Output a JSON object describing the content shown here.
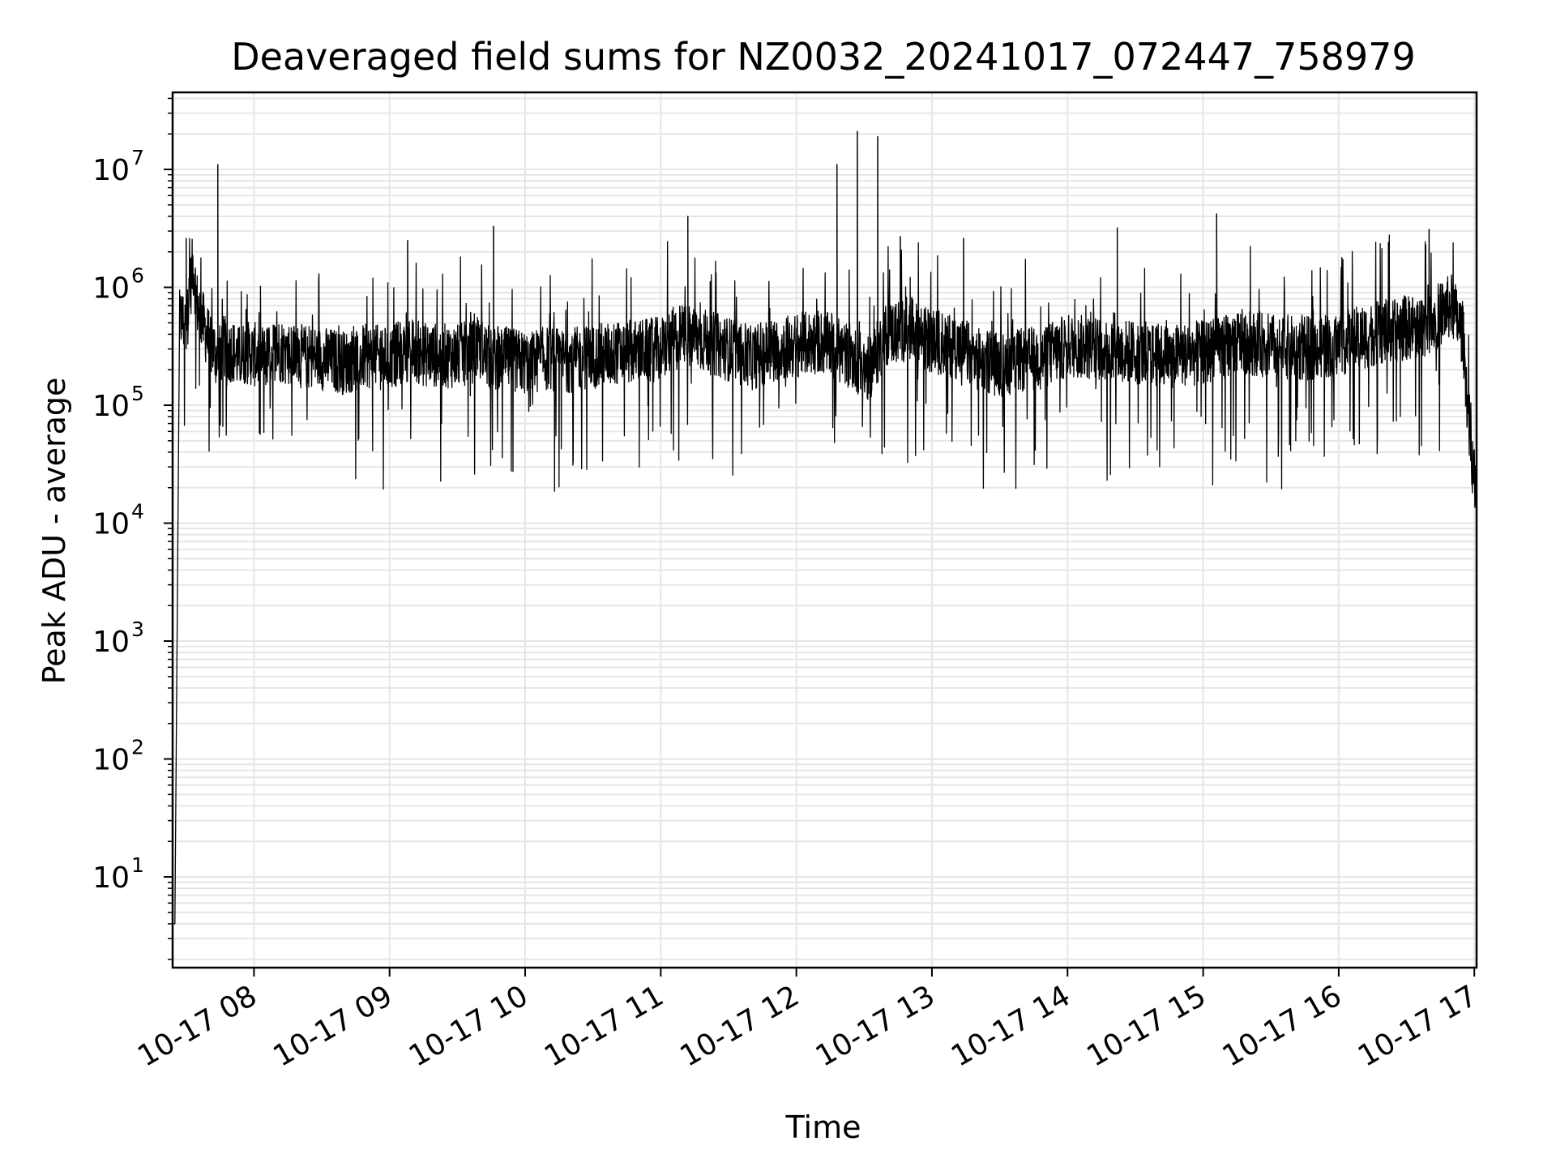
{
  "chart_data": {
    "type": "line",
    "title": "Deaveraged field sums for NZ0032_20241017_072447_758979",
    "xlabel": "Time",
    "ylabel": "Peak ADU - average",
    "y_scale": "log",
    "ylim": [
      1.7,
      45000000
    ],
    "xlim": [
      "2024-10-17 07:24",
      "2024-10-17 17:01"
    ],
    "grid": true,
    "line_color": "#000000",
    "grid_color": "#e6e6e6",
    "x_ticks": [
      {
        "value": "2024-10-17 08:00",
        "label": "10-17 08"
      },
      {
        "value": "2024-10-17 09:00",
        "label": "10-17 09"
      },
      {
        "value": "2024-10-17 10:00",
        "label": "10-17 10"
      },
      {
        "value": "2024-10-17 11:00",
        "label": "10-17 11"
      },
      {
        "value": "2024-10-17 12:00",
        "label": "10-17 12"
      },
      {
        "value": "2024-10-17 13:00",
        "label": "10-17 13"
      },
      {
        "value": "2024-10-17 14:00",
        "label": "10-17 14"
      },
      {
        "value": "2024-10-17 15:00",
        "label": "10-17 15"
      },
      {
        "value": "2024-10-17 16:00",
        "label": "10-17 16"
      },
      {
        "value": "2024-10-17 17:00",
        "label": "10-17 17"
      }
    ],
    "y_ticks": [
      {
        "value": 10,
        "base": "10",
        "exp": "1"
      },
      {
        "value": 100,
        "base": "10",
        "exp": "2"
      },
      {
        "value": 1000,
        "base": "10",
        "exp": "3"
      },
      {
        "value": 10000,
        "base": "10",
        "exp": "4"
      },
      {
        "value": 100000,
        "base": "10",
        "exp": "5"
      },
      {
        "value": 1000000,
        "base": "10",
        "exp": "6"
      },
      {
        "value": 10000000,
        "base": "10",
        "exp": "7"
      }
    ],
    "series": [
      {
        "x": [
          "2024-10-17 07:24",
          "2024-10-17 07:25",
          "2024-10-17 07:27",
          "2024-10-17 07:28",
          "2024-10-17 07:30",
          "2024-10-17 07:33",
          "2024-10-17 07:35",
          "2024-10-17 07:39",
          "2024-10-17 07:42",
          "2024-10-17 07:44",
          "2024-10-17 07:45",
          "2024-10-17 07:47",
          "2024-10-17 07:48",
          "2024-10-17 07:50",
          "2024-10-17 07:53",
          "2024-10-17 07:56",
          "2024-10-17 08:00",
          "2024-10-17 08:05",
          "2024-10-17 08:10",
          "2024-10-17 08:15",
          "2024-10-17 08:20",
          "2024-10-17 08:30",
          "2024-10-17 08:40",
          "2024-10-17 08:50",
          "2024-10-17 09:00",
          "2024-10-17 09:08",
          "2024-10-17 09:15",
          "2024-10-17 09:30",
          "2024-10-17 09:40",
          "2024-10-17 09:45",
          "2024-10-17 09:50",
          "2024-10-17 10:00",
          "2024-10-17 10:10",
          "2024-10-17 10:20",
          "2024-10-17 10:30",
          "2024-10-17 10:45",
          "2024-10-17 11:00",
          "2024-10-17 11:10",
          "2024-10-17 11:20",
          "2024-10-17 11:30",
          "2024-10-17 11:40",
          "2024-10-17 11:50",
          "2024-10-17 12:00",
          "2024-10-17 12:10",
          "2024-10-17 12:18",
          "2024-10-17 12:25",
          "2024-10-17 12:32",
          "2024-10-17 12:40",
          "2024-10-17 12:50",
          "2024-10-17 13:00",
          "2024-10-17 13:10",
          "2024-10-17 13:20",
          "2024-10-17 13:30",
          "2024-10-17 13:40",
          "2024-10-17 13:50",
          "2024-10-17 14:00",
          "2024-10-17 14:15",
          "2024-10-17 14:30",
          "2024-10-17 14:45",
          "2024-10-17 15:00",
          "2024-10-17 15:06",
          "2024-10-17 15:15",
          "2024-10-17 15:30",
          "2024-10-17 15:45",
          "2024-10-17 16:00",
          "2024-10-17 16:15",
          "2024-10-17 16:30",
          "2024-10-17 16:40",
          "2024-10-17 16:45",
          "2024-10-17 16:50",
          "2024-10-17 16:55",
          "2024-10-17 16:58",
          "2024-10-17 17:00",
          "2024-10-17 17:01"
        ],
        "y": [
          4,
          4,
          500000,
          550000,
          450000,
          1600000,
          700000,
          400000,
          300000,
          250000,
          280000,
          320000,
          260000,
          300000,
          250000,
          280000,
          270000,
          250000,
          300000,
          280000,
          260000,
          250000,
          230000,
          260000,
          250000,
          300000,
          270000,
          260000,
          300000,
          240000,
          250000,
          230000,
          250000,
          240000,
          260000,
          280000,
          300000,
          400000,
          350000,
          300000,
          250000,
          300000,
          320000,
          350000,
          300000,
          250000,
          200000,
          400000,
          450000,
          350000,
          320000,
          250000,
          220000,
          240000,
          260000,
          320000,
          300000,
          280000,
          260000,
          280000,
          300000,
          350000,
          320000,
          300000,
          330000,
          400000,
          450000,
          500000,
          600000,
          700000,
          400000,
          50000,
          25000,
          15000
        ]
      }
    ],
    "spikes": [
      {
        "x": "2024-10-17 07:30",
        "y": 2600000
      },
      {
        "x": "2024-10-17 07:44",
        "y": 11000000
      },
      {
        "x": "2024-10-17 09:08",
        "y": 2500000
      },
      {
        "x": "2024-10-17 09:46",
        "y": 3300000
      },
      {
        "x": "2024-10-17 11:12",
        "y": 4000000
      },
      {
        "x": "2024-10-17 12:18",
        "y": 11000000
      },
      {
        "x": "2024-10-17 12:27",
        "y": 21000000
      },
      {
        "x": "2024-10-17 12:36",
        "y": 19000000
      },
      {
        "x": "2024-10-17 12:46",
        "y": 2700000
      },
      {
        "x": "2024-10-17 13:14",
        "y": 2600000
      },
      {
        "x": "2024-10-17 14:22",
        "y": 3200000
      },
      {
        "x": "2024-10-17 15:06",
        "y": 4200000
      },
      {
        "x": "2024-10-17 16:22",
        "y": 2400000
      },
      {
        "x": "2024-10-17 16:40",
        "y": 3100000
      }
    ]
  }
}
